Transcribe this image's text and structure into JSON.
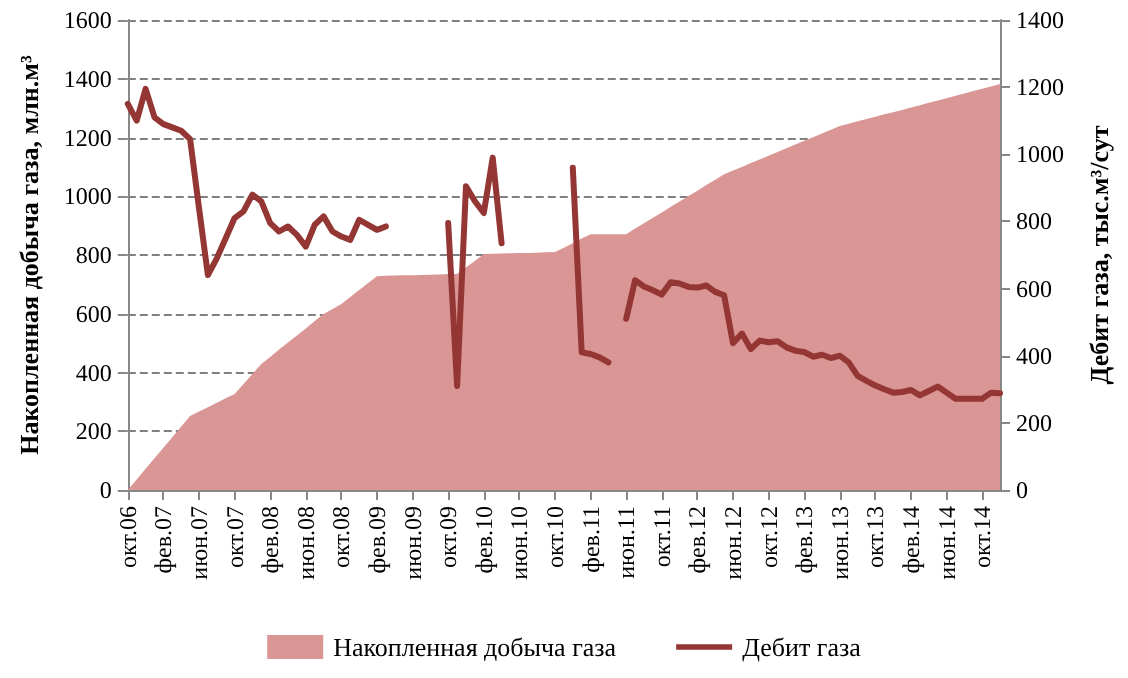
{
  "chart_data": {
    "type": "area",
    "xlabel": null,
    "ylabel": "Накопленная добыча газа, млн.м³",
    "y2label": "Дебит газа, тыс.м³/сут",
    "categories": [
      "окт.06",
      null,
      null,
      null,
      "фев.07",
      null,
      null,
      null,
      "июн.07",
      null,
      null,
      null,
      "окт.07",
      null,
      null,
      null,
      "фев.08",
      null,
      null,
      null,
      "июн.08",
      null,
      null,
      null,
      "окт.08",
      null,
      null,
      null,
      "фев.09",
      null,
      null,
      null,
      "июн.09",
      null,
      null,
      null,
      "окт.09",
      null,
      null,
      null,
      "фев.10",
      null,
      null,
      null,
      "июн.10",
      null,
      null,
      null,
      "окт.10",
      null,
      null,
      null,
      "фев.11",
      null,
      null,
      null,
      "июн.11",
      null,
      null,
      null,
      "окт.11",
      null,
      null,
      null,
      "фев.12",
      null,
      null,
      null,
      "июн.12",
      null,
      null,
      null,
      "окт.12",
      null,
      null,
      null,
      "фев.13",
      null,
      null,
      null,
      "июн.13",
      null,
      null,
      null,
      "окт.13",
      null,
      null,
      null,
      "фев.14",
      null,
      null,
      null,
      "июн.14",
      null,
      null,
      null,
      "окт.14",
      null,
      null
    ],
    "series": [
      {
        "name": "Накопленная добыча газа",
        "color": "#d99694",
        "values": [
          0,
          36,
          72,
          108,
          144,
          180,
          216,
          252,
          267,
          282,
          297,
          312,
          327,
          361,
          395,
          429,
          453,
          478,
          502,
          526,
          550,
          575,
          599,
          616,
          633,
          657,
          681,
          705,
          728,
          729,
          730,
          731,
          731,
          732,
          733,
          734,
          735,
          735,
          758,
          780,
          803,
          804,
          805,
          806,
          807,
          807,
          808,
          809,
          810,
          825,
          840,
          856,
          871,
          871,
          871,
          871,
          871,
          890,
          908,
          927,
          945,
          964,
          982,
          1001,
          1019,
          1038,
          1056,
          1075,
          1088,
          1100,
          1113,
          1125,
          1138,
          1151,
          1163,
          1176,
          1189,
          1201,
          1214,
          1226,
          1239,
          1247,
          1255,
          1263,
          1271,
          1279,
          1286,
          1294,
          1302,
          1310,
          1318,
          1326,
          1334,
          1342,
          1350,
          1358,
          1366,
          1374,
          1382
        ]
      },
      {
        "name": "Дебит газа",
        "type": "line",
        "axis": "y2",
        "color": "#943634",
        "values": [
          1150,
          1100,
          1195,
          1110,
          1090,
          1080,
          1070,
          1045,
          840,
          640,
          690,
          750,
          810,
          830,
          880,
          860,
          795,
          770,
          785,
          760,
          725,
          790,
          815,
          770,
          755,
          745,
          805,
          790,
          775,
          785,
          null,
          null,
          null,
          null,
          null,
          null,
          795,
          310,
          905,
          860,
          825,
          990,
          735,
          null,
          null,
          null,
          null,
          null,
          null,
          null,
          960,
          410,
          405,
          395,
          380,
          null,
          510,
          625,
          606,
          595,
          582,
          619,
          615,
          605,
          603,
          609,
          590,
          580,
          437,
          466,
          420,
          445,
          440,
          443,
          425,
          415,
          411,
          397,
          403,
          393,
          400,
          380,
          340,
          325,
          311,
          300,
          290,
          292,
          298,
          282,
          295,
          308,
          290,
          272,
          272,
          272,
          272,
          290,
          288
        ]
      }
    ],
    "ylim": [
      0,
      1600
    ],
    "yticks": [
      0,
      200,
      400,
      600,
      800,
      1000,
      1200,
      1400,
      1600
    ],
    "y2lim": [
      0,
      1400
    ],
    "y2ticks": [
      0,
      200,
      400,
      600,
      800,
      1000,
      1200,
      1400
    ],
    "grid": "y",
    "legend": "bottom",
    "marker": "none",
    "line_style": "solid"
  }
}
